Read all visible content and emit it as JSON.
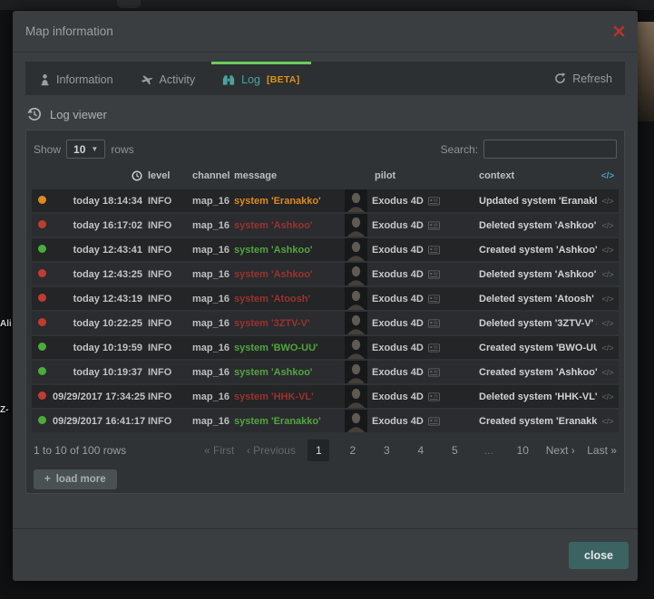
{
  "background": {
    "system_labels": [
      "Ali",
      "Z-"
    ]
  },
  "icons": {
    "caret_down": "▼",
    "code_tag": "</>",
    "plus": "+"
  },
  "colors": {
    "modal_background": "#3a3e40",
    "active_tab_indicator_green": "#6dcb5d",
    "active_tab_teal": "#4aa49d",
    "beta_badge_orange": "#e2920f",
    "close_icon_red": "#b5342c",
    "close_button_teal": "#3b6362",
    "status_orange": "#e0891c",
    "status_red": "#c23b31",
    "status_green": "#4bad3a",
    "message_orange": "#de8a1b",
    "message_red": "#9c322d",
    "message_green": "#52a53d"
  },
  "modal": {
    "title": "Map information",
    "tabs": [
      {
        "label": "Information"
      },
      {
        "label": "Activity"
      },
      {
        "label": "Log",
        "badge": "[BETA]"
      }
    ],
    "refresh_label": "Refresh",
    "section_title": "Log viewer",
    "controls": {
      "show_label": "Show",
      "rows_per_page": "10",
      "rows_label": "rows",
      "search_label": "Search:",
      "search_value": ""
    },
    "table": {
      "headers": {
        "level": "level",
        "channel": "channel",
        "message": "message",
        "pilot": "pilot",
        "context": "context"
      },
      "rows": [
        {
          "color": "orange",
          "time": "today 18:14:34",
          "level": "INFO",
          "channel": "map_16",
          "message": "system 'Eranakko'",
          "pilot": "Exodus 4D",
          "context": "Updated system 'Eranakk..."
        },
        {
          "color": "red",
          "time": "today 16:17:02",
          "level": "INFO",
          "channel": "map_16",
          "message": "system 'Ashkoo'",
          "pilot": "Exodus 4D",
          "context": "Deleted system 'Ashkoo' ..."
        },
        {
          "color": "green",
          "time": "today 12:43:41",
          "level": "INFO",
          "channel": "map_16",
          "message": "system 'Ashkoo'",
          "pilot": "Exodus 4D",
          "context": "Created system 'Ashkoo' ..."
        },
        {
          "color": "red",
          "time": "today 12:43:25",
          "level": "INFO",
          "channel": "map_16",
          "message": "system 'Ashkoo'",
          "pilot": "Exodus 4D",
          "context": "Deleted system 'Ashkoo' ..."
        },
        {
          "color": "red",
          "time": "today 12:43:19",
          "level": "INFO",
          "channel": "map_16",
          "message": "system 'Atoosh'",
          "pilot": "Exodus 4D",
          "context": "Deleted system 'Atoosh' #..."
        },
        {
          "color": "red",
          "time": "today 10:22:25",
          "level": "INFO",
          "channel": "map_16",
          "message": "system '3ZTV-V'",
          "pilot": "Exodus 4D",
          "context": "Deleted system '3ZTV-V' #..."
        },
        {
          "color": "green",
          "time": "today 10:19:59",
          "level": "INFO",
          "channel": "map_16",
          "message": "system 'BWO-UU'",
          "pilot": "Exodus 4D",
          "context": "Created system 'BWO-UU'..."
        },
        {
          "color": "green",
          "time": "today 10:19:37",
          "level": "INFO",
          "channel": "map_16",
          "message": "system 'Ashkoo'",
          "pilot": "Exodus 4D",
          "context": "Created system 'Ashkoo' ..."
        },
        {
          "color": "red",
          "time": "09/29/2017 17:34:25",
          "level": "INFO",
          "channel": "map_16",
          "message": "system 'HHK-VL'",
          "pilot": "Exodus 4D",
          "context": "Deleted system 'HHK-VL' ..."
        },
        {
          "color": "green",
          "time": "09/29/2017 16:41:17",
          "level": "INFO",
          "channel": "map_16",
          "message": "system 'Eranakko'",
          "pilot": "Exodus 4D",
          "context": "Created system 'Eranakko..."
        }
      ]
    },
    "pagination": {
      "info": "1 to 10 of 100 rows",
      "first_label": "« First",
      "previous_label": "‹ Previous",
      "pages": [
        {
          "label": "1",
          "active": true,
          "clickable": true
        },
        {
          "label": "2",
          "active": false,
          "clickable": true
        },
        {
          "label": "3",
          "active": false,
          "clickable": true
        },
        {
          "label": "4",
          "active": false,
          "clickable": true
        },
        {
          "label": "5",
          "active": false,
          "clickable": true
        },
        {
          "label": "...",
          "active": false,
          "clickable": false
        },
        {
          "label": "10",
          "active": false,
          "clickable": true
        }
      ],
      "next_label": "Next ›",
      "last_label": "Last »"
    },
    "load_more_label": "load more",
    "footer": {
      "close_label": "close"
    }
  }
}
